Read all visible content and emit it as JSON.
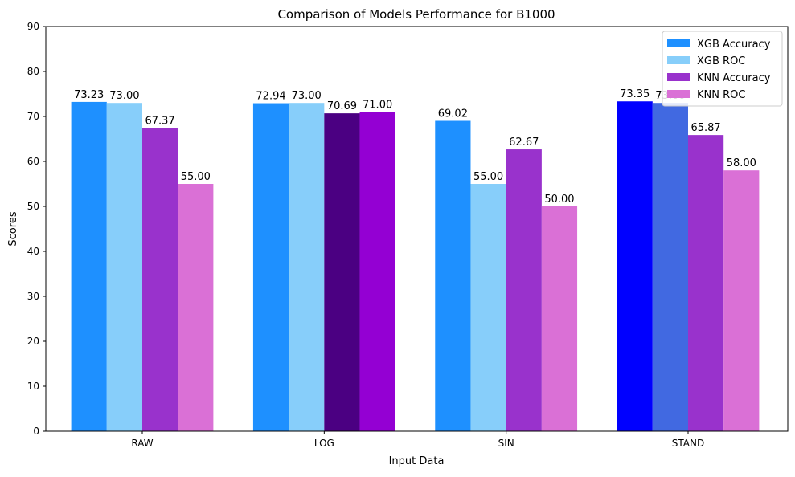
{
  "chart_data": {
    "type": "bar",
    "title": "Comparison of Models Performance for B1000",
    "xlabel": "Input Data",
    "ylabel": "Scores",
    "ylim": [
      0,
      90
    ],
    "yticks": [
      0,
      10,
      20,
      30,
      40,
      50,
      60,
      70,
      80,
      90
    ],
    "categories": [
      "RAW",
      "LOG",
      "SIN",
      "STAND"
    ],
    "series": [
      {
        "name": "XGB Accuracy",
        "legend_color": "#1e90ff",
        "values": [
          73.23,
          72.94,
          69.02,
          73.35
        ],
        "value_labels": [
          "73.23",
          "72.94",
          "69.02",
          "73.35"
        ],
        "colors": [
          "#1e90ff",
          "#1e90ff",
          "#1e90ff",
          "#0000ff"
        ]
      },
      {
        "name": "XGB ROC",
        "legend_color": "#87cefa",
        "values": [
          73.0,
          73.0,
          55.0,
          73.0
        ],
        "value_labels": [
          "73.00",
          "73.00",
          "55.00",
          "73.00"
        ],
        "colors": [
          "#87cefa",
          "#87cefa",
          "#87cefa",
          "#4169e1"
        ]
      },
      {
        "name": "KNN Accuracy",
        "legend_color": "#9932cc",
        "values": [
          67.37,
          70.69,
          62.67,
          65.87
        ],
        "value_labels": [
          "67.37",
          "70.69",
          "62.67",
          "65.87"
        ],
        "colors": [
          "#9932cc",
          "#4b0082",
          "#9932cc",
          "#9932cc"
        ]
      },
      {
        "name": "KNN ROC",
        "legend_color": "#da70d6",
        "values": [
          55.0,
          71.0,
          50.0,
          58.0
        ],
        "value_labels": [
          "55.00",
          "71.00",
          "50.00",
          "58.00"
        ],
        "colors": [
          "#da70d6",
          "#9400d3",
          "#da70d6",
          "#da70d6"
        ]
      }
    ],
    "legend_position": "top-right",
    "grid": false
  }
}
